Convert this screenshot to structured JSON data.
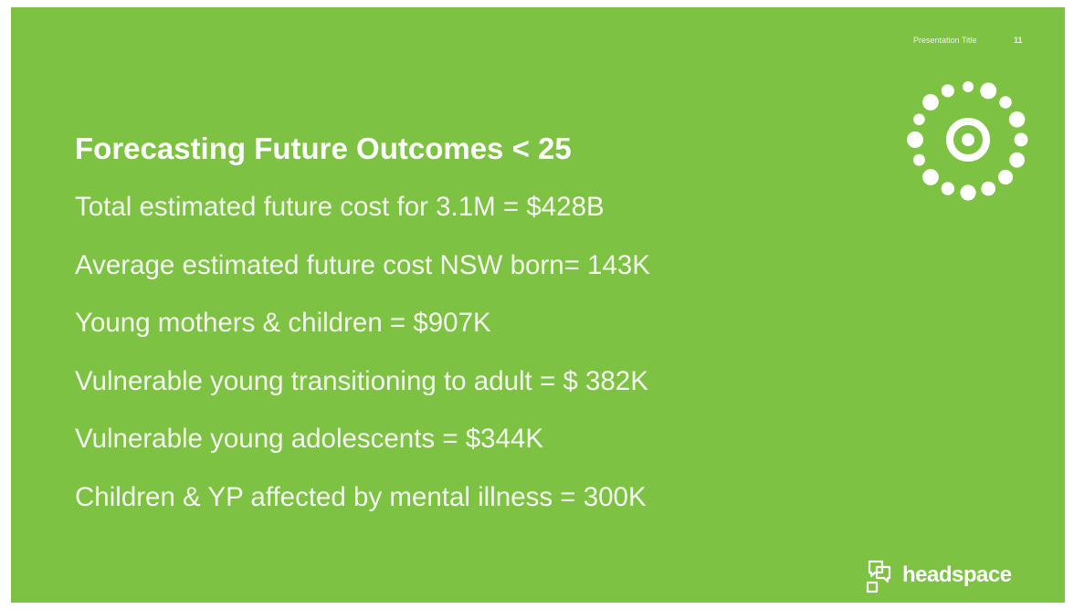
{
  "header": {
    "presentation_title": "Presentation Title",
    "page_number": "11"
  },
  "title": "Forecasting Future Outcomes < 25",
  "lines": [
    "Total estimated future cost for 3.1M = $428B",
    "Average estimated future cost NSW born= 143K",
    "Young mothers & children = $907K",
    "Vulnerable young transitioning to adult = $ 382K",
    "Vulnerable young adolescents = $344K",
    "Children & YP affected by mental illness = 300K"
  ],
  "brand": "headspace"
}
